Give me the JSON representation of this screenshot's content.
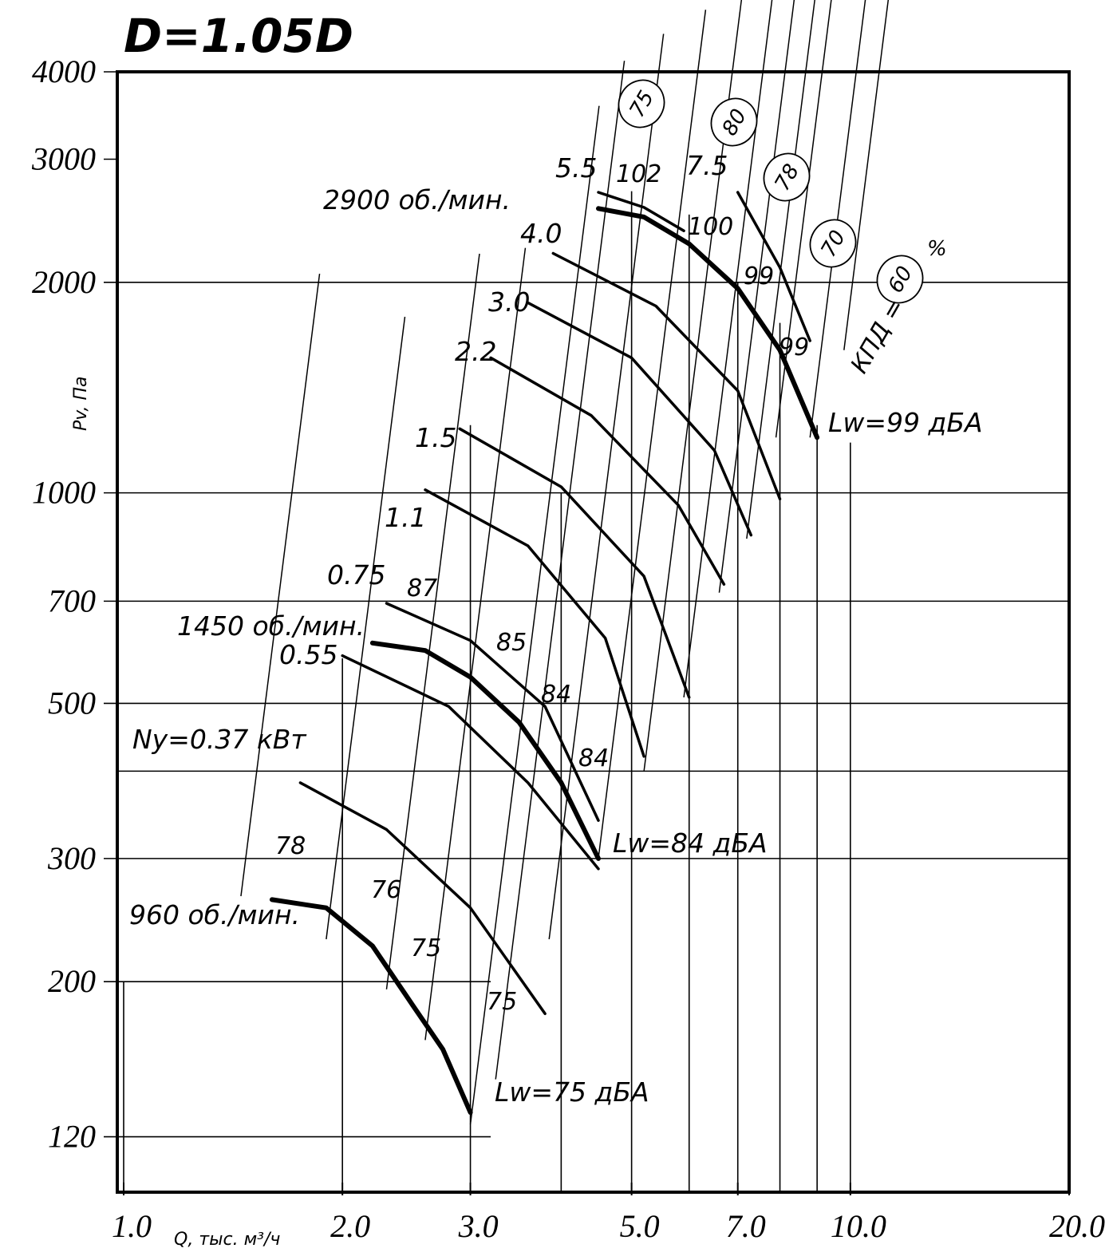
{
  "chart_data": {
    "type": "line",
    "title": "D=1.05D",
    "xlabel": "Q, тыс. м³/ч",
    "ylabel": "Pv, Па",
    "x_scale": "log",
    "y_scale": "log",
    "xlim": [
      0.98,
      20.0
    ],
    "ylim": [
      100,
      4000
    ],
    "x_ticks": [
      {
        "value": 1.0,
        "label": "1.0"
      },
      {
        "value": 2.0,
        "label": "2.0"
      },
      {
        "value": 3.0,
        "label": "3.0"
      },
      {
        "value": 5.0,
        "label": "5.0"
      },
      {
        "value": 7.0,
        "label": "7.0"
      },
      {
        "value": 10.0,
        "label": "10.0"
      },
      {
        "value": 20.0,
        "label": "20.0"
      }
    ],
    "y_ticks": [
      {
        "value": 120,
        "label": "120"
      },
      {
        "value": 200,
        "label": "200"
      },
      {
        "value": 300,
        "label": "300"
      },
      {
        "value": 500,
        "label": "500"
      },
      {
        "value": 700,
        "label": "700"
      },
      {
        "value": 1000,
        "label": "1000"
      },
      {
        "value": 2000,
        "label": "2000"
      },
      {
        "value": 3000,
        "label": "3000"
      },
      {
        "value": 4000,
        "label": "4000"
      }
    ],
    "speed_curves": [
      {
        "name": "960 об./мин.",
        "x": [
          1.6,
          1.9,
          2.2,
          2.5,
          2.75,
          3.0
        ],
        "y": [
          262,
          255,
          225,
          185,
          160,
          130
        ]
      },
      {
        "name": "1450 об./мин.",
        "x": [
          2.2,
          2.6,
          3.0,
          3.5,
          4.0,
          4.5
        ],
        "y": [
          610,
          595,
          545,
          470,
          385,
          300
        ]
      },
      {
        "name": "2900 об./мин.",
        "x": [
          4.5,
          5.2,
          6.0,
          7.0,
          8.0,
          9.0
        ],
        "y": [
          2550,
          2480,
          2270,
          1960,
          1600,
          1200
        ]
      }
    ],
    "power_curves": [
      {
        "label": "Ny=0.37 кВт",
        "x": [
          1.75,
          2.3,
          3.0,
          3.8
        ],
        "y": [
          385,
          330,
          255,
          180
        ]
      },
      {
        "label": "0.55",
        "x": [
          2.0,
          2.8,
          3.6,
          4.5
        ],
        "y": [
          585,
          495,
          385,
          290
        ]
      },
      {
        "label": "0.75",
        "x": [
          2.3,
          3.0,
          3.8,
          4.5
        ],
        "y": [
          695,
          615,
          495,
          340
        ]
      },
      {
        "label": "1.1",
        "x": [
          2.6,
          3.6,
          4.6,
          5.2
        ],
        "y": [
          1010,
          840,
          620,
          420
        ]
      },
      {
        "label": "1.5",
        "x": [
          2.9,
          4.0,
          5.2,
          6.0
        ],
        "y": [
          1235,
          1020,
          760,
          510
        ]
      },
      {
        "label": "2.2",
        "x": [
          3.2,
          4.4,
          5.8,
          6.7
        ],
        "y": [
          1560,
          1290,
          960,
          740
        ]
      },
      {
        "label": "3.0",
        "x": [
          3.6,
          5.0,
          6.5,
          7.3
        ],
        "y": [
          1870,
          1560,
          1150,
          870
        ]
      },
      {
        "label": "4.0",
        "x": [
          3.9,
          5.4,
          7.0,
          8.0
        ],
        "y": [
          2200,
          1850,
          1400,
          980
        ]
      },
      {
        "label": "5.5",
        "x": [
          4.5,
          5.2,
          5.9
        ],
        "y": [
          2690,
          2560,
          2370
        ]
      },
      {
        "label": "7.5",
        "x": [
          7.0,
          8.0,
          8.8
        ],
        "y": [
          2690,
          2100,
          1650
        ]
      }
    ],
    "noise_labels": [
      "Lw=75 дБА",
      "Lw=84 дБА",
      "Lw=99 дБА"
    ],
    "noise_values_960": [
      "78",
      "76",
      "75",
      "75"
    ],
    "noise_values_1450": [
      "87",
      "85",
      "84",
      "84"
    ],
    "noise_values_2900": [
      "102",
      "100",
      "99",
      "99"
    ],
    "efficiency_label": "КПД =",
    "efficiency_unit": "%",
    "efficiency_values": [
      "75",
      "80",
      "78",
      "70",
      "60"
    ]
  }
}
